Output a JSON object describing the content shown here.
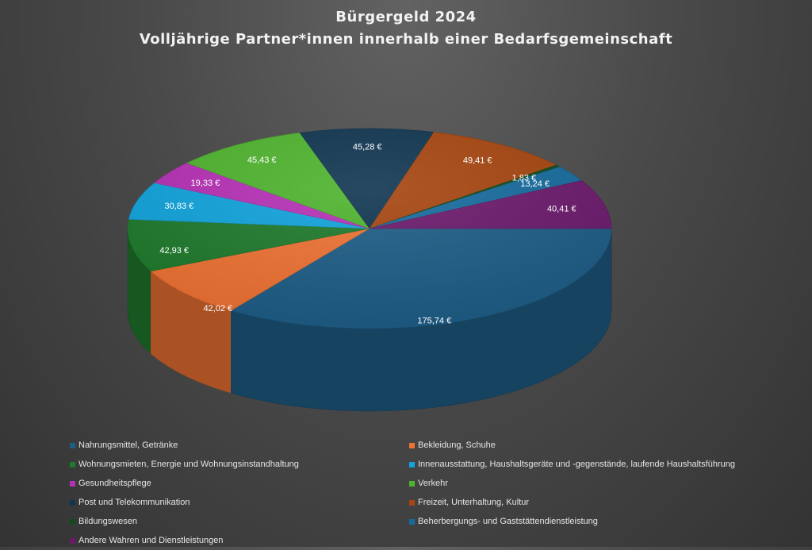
{
  "chart_data": {
    "type": "pie",
    "title": "Bürgergeld 2024",
    "subtitle": "Volljährige Partner*innen innerhalb einer Bedarfsgemeinschaft",
    "legend_position": "bottom",
    "slices": [
      {
        "name": "Nahrungsmittel, Getränke",
        "value": 175.74,
        "label": "175,74 €",
        "color": "#1e5d86"
      },
      {
        "name": "Bekleidung, Schuhe",
        "value": 42.02,
        "label": "42,02 €",
        "color": "#ed7233"
      },
      {
        "name": "Wohnungsmieten, Energie und Wohnungsinstandhaltung",
        "value": 42.93,
        "label": "42,93 €",
        "color": "#1e7a2c"
      },
      {
        "name": "Innenausstattung, Haushaltsgeräte und -gegenstände, laufende Haushaltsführung",
        "value": 30.83,
        "label": "30,83 €",
        "color": "#11a3dc"
      },
      {
        "name": "Gesundheitspflege",
        "value": 19.33,
        "label": "19,33 €",
        "color": "#b530b5"
      },
      {
        "name": "Verkehr",
        "value": 45.43,
        "label": "45,43 €",
        "color": "#4eb32e"
      },
      {
        "name": "Post und Telekommunikation",
        "value": 45.28,
        "label": "45,28 €",
        "color": "#0f3550"
      },
      {
        "name": "Freizeit, Unterhaltung, Kultur",
        "value": 49.41,
        "label": "49,41 €",
        "color": "#a6450f"
      },
      {
        "name": "Bildungswesen",
        "value": 1.83,
        "label": "1,83 €",
        "color": "#0f4a1b"
      },
      {
        "name": "Beherbergungs- und Gaststättendienstleistung",
        "value": 13.24,
        "label": "13,24 €",
        "color": "#166b9e"
      },
      {
        "name": "Andere Wahren und Dienstleistungen",
        "value": 40.41,
        "label": "40,41 €",
        "color": "#6b1a6b"
      }
    ]
  }
}
